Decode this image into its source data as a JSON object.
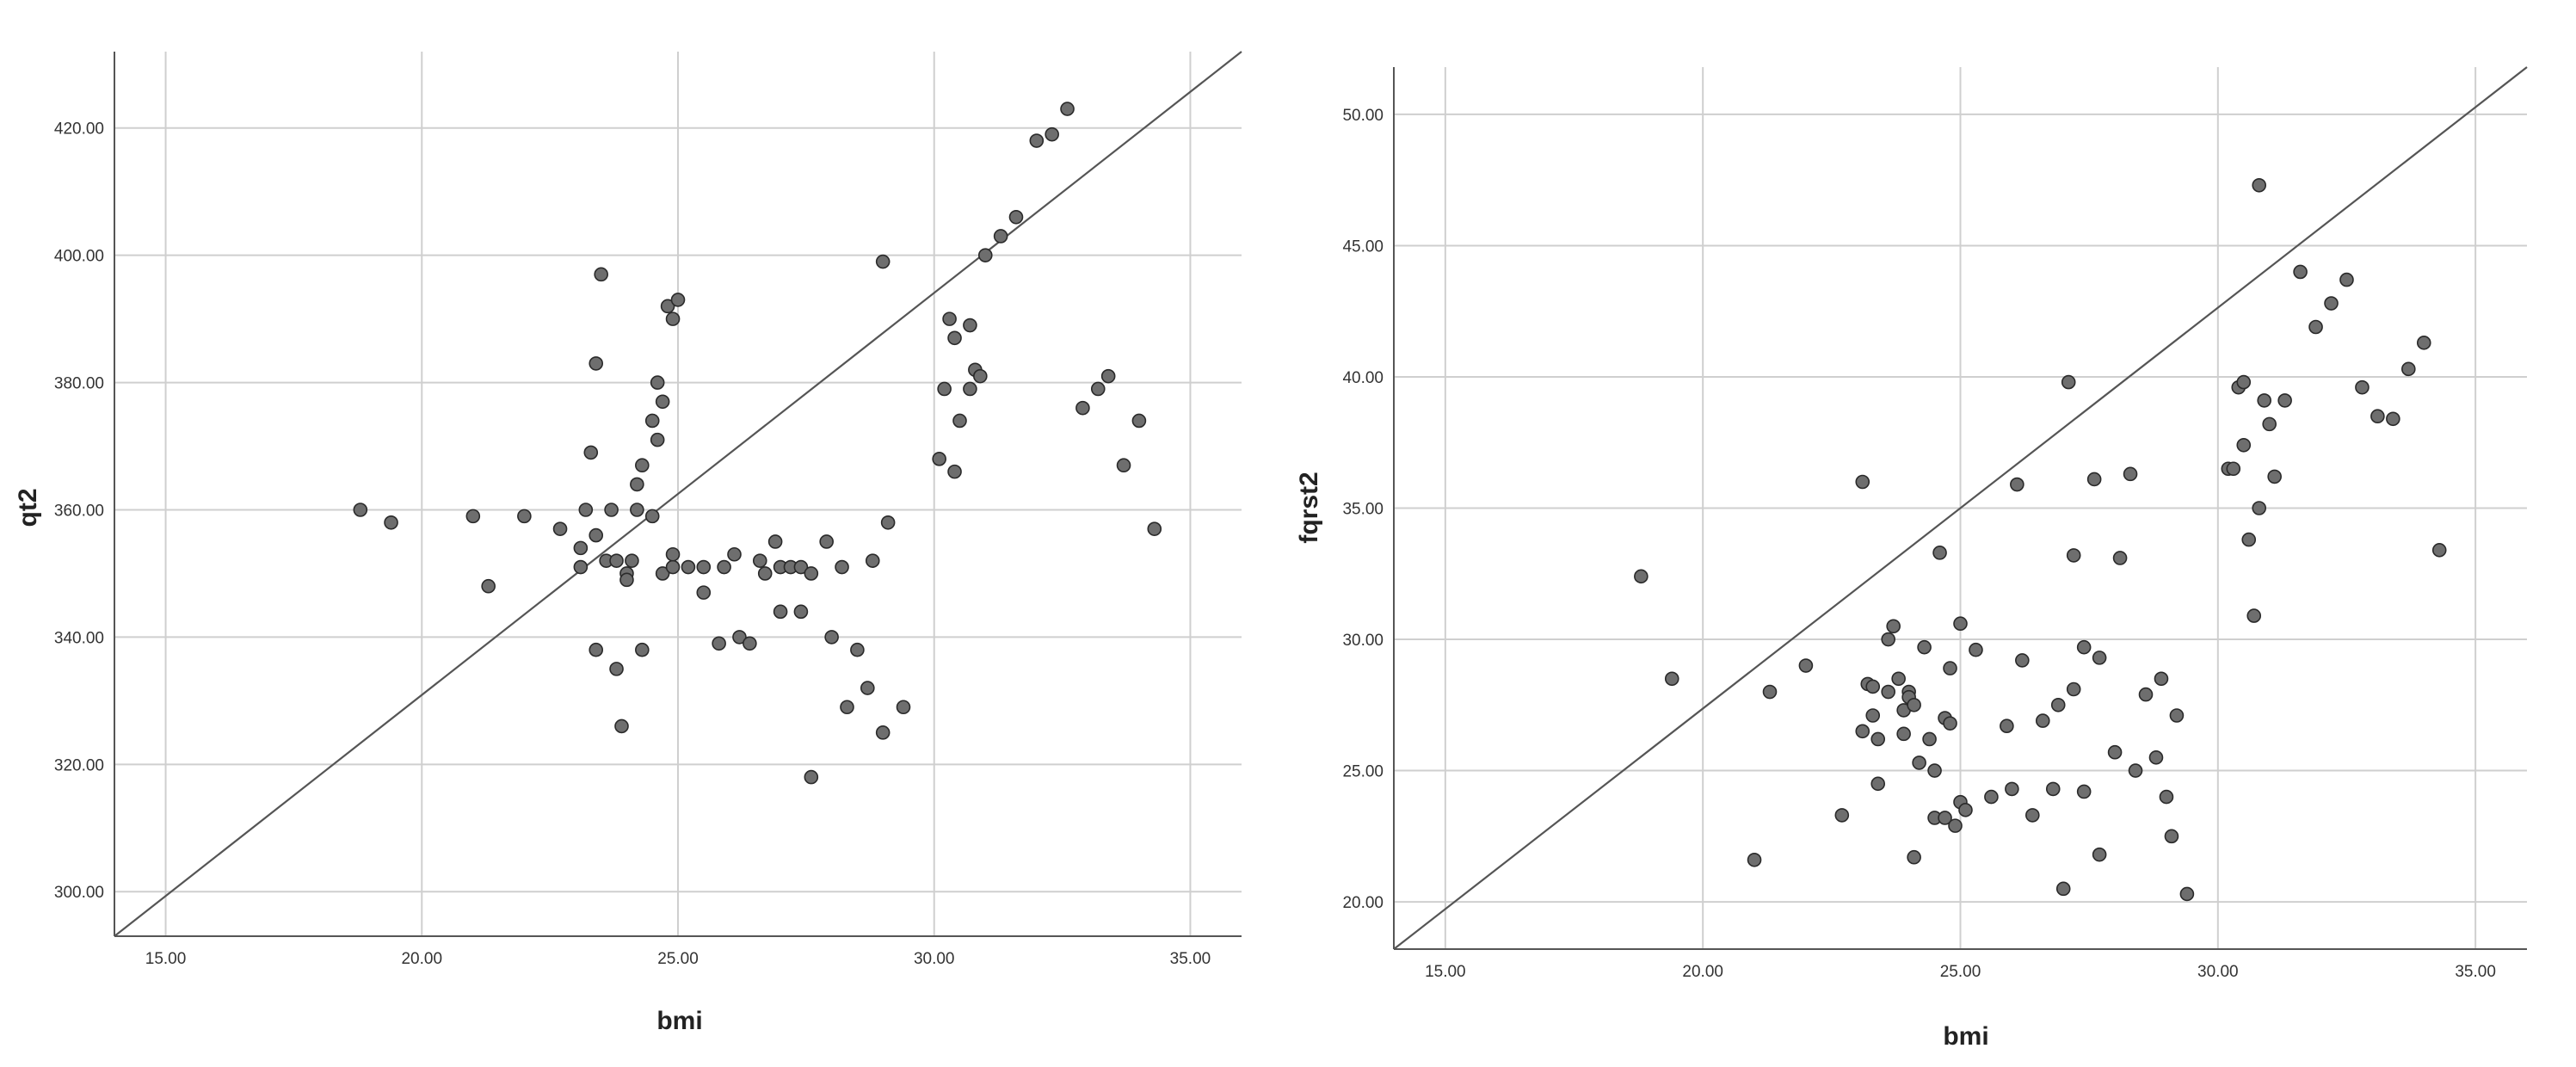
{
  "chart_data": [
    {
      "type": "scatter",
      "xlabel": "bmi",
      "ylabel": "qt2",
      "xlim": [
        14.0,
        36.0
      ],
      "ylim": [
        293.0,
        432.0
      ],
      "xticks": [
        "15.00",
        "20.00",
        "25.00",
        "30.00",
        "35.00"
      ],
      "yticks": [
        "300.00",
        "320.00",
        "340.00",
        "360.00",
        "380.00",
        "400.00",
        "420.00"
      ],
      "grid": true,
      "reference_line": [
        [
          14.0,
          293.0
        ],
        [
          36.0,
          432.0
        ]
      ],
      "points": [
        [
          18.8,
          360
        ],
        [
          19.4,
          358
        ],
        [
          21.0,
          359
        ],
        [
          21.3,
          348
        ],
        [
          22.0,
          359
        ],
        [
          22.7,
          357
        ],
        [
          23.1,
          351
        ],
        [
          23.1,
          354
        ],
        [
          23.2,
          360
        ],
        [
          23.3,
          369
        ],
        [
          23.4,
          383
        ],
        [
          23.5,
          397
        ],
        [
          23.4,
          338
        ],
        [
          23.6,
          352
        ],
        [
          23.4,
          356
        ],
        [
          23.8,
          335
        ],
        [
          23.8,
          352
        ],
        [
          23.7,
          360
        ],
        [
          23.9,
          326
        ],
        [
          24.0,
          350
        ],
        [
          24.0,
          349
        ],
        [
          24.1,
          352
        ],
        [
          24.2,
          360
        ],
        [
          24.2,
          364
        ],
        [
          24.3,
          367
        ],
        [
          24.3,
          338
        ],
        [
          24.5,
          374
        ],
        [
          24.5,
          359
        ],
        [
          24.6,
          380
        ],
        [
          24.6,
          371
        ],
        [
          24.7,
          377
        ],
        [
          24.7,
          350
        ],
        [
          24.8,
          392
        ],
        [
          24.9,
          390
        ],
        [
          25.0,
          393
        ],
        [
          24.9,
          351
        ],
        [
          24.9,
          353
        ],
        [
          25.2,
          351
        ],
        [
          25.5,
          351
        ],
        [
          25.5,
          347
        ],
        [
          25.8,
          339
        ],
        [
          25.9,
          351
        ],
        [
          26.1,
          353
        ],
        [
          26.2,
          340
        ],
        [
          26.4,
          339
        ],
        [
          26.6,
          352
        ],
        [
          26.7,
          350
        ],
        [
          26.9,
          355
        ],
        [
          27.0,
          351
        ],
        [
          27.0,
          344
        ],
        [
          27.2,
          351
        ],
        [
          27.4,
          351
        ],
        [
          27.4,
          344
        ],
        [
          27.6,
          350
        ],
        [
          27.6,
          318
        ],
        [
          27.9,
          355
        ],
        [
          28.0,
          340
        ],
        [
          28.2,
          351
        ],
        [
          28.3,
          329
        ],
        [
          28.5,
          338
        ],
        [
          28.7,
          332
        ],
        [
          28.8,
          352
        ],
        [
          29.0,
          325
        ],
        [
          29.0,
          399
        ],
        [
          29.1,
          358
        ],
        [
          29.4,
          329
        ],
        [
          30.1,
          368
        ],
        [
          30.2,
          379
        ],
        [
          30.3,
          390
        ],
        [
          30.4,
          387
        ],
        [
          30.4,
          366
        ],
        [
          30.5,
          374
        ],
        [
          30.7,
          379
        ],
        [
          30.7,
          389
        ],
        [
          30.8,
          382
        ],
        [
          30.9,
          381
        ],
        [
          31.0,
          400
        ],
        [
          31.3,
          403
        ],
        [
          31.6,
          406
        ],
        [
          32.0,
          418
        ],
        [
          32.3,
          419
        ],
        [
          32.6,
          423
        ],
        [
          32.9,
          376
        ],
        [
          33.2,
          379
        ],
        [
          33.4,
          381
        ],
        [
          33.7,
          367
        ],
        [
          34.0,
          374
        ],
        [
          34.3,
          357
        ]
      ]
    },
    {
      "type": "scatter",
      "xlabel": "bmi",
      "ylabel": "fqrst2",
      "xlim": [
        14.0,
        36.0
      ],
      "ylim": [
        18.2,
        51.8
      ],
      "xticks": [
        "15.00",
        "20.00",
        "25.00",
        "30.00",
        "35.00"
      ],
      "yticks": [
        "20.00",
        "25.00",
        "30.00",
        "35.00",
        "40.00",
        "45.00",
        "50.00"
      ],
      "grid": true,
      "reference_line": [
        [
          14.0,
          18.2
        ],
        [
          36.0,
          51.8
        ]
      ],
      "points": [
        [
          18.8,
          32.4
        ],
        [
          19.4,
          28.5
        ],
        [
          21.0,
          21.6
        ],
        [
          21.3,
          28.0
        ],
        [
          22.0,
          29.0
        ],
        [
          22.7,
          23.3
        ],
        [
          23.1,
          36.0
        ],
        [
          23.1,
          26.5
        ],
        [
          23.2,
          28.3
        ],
        [
          23.3,
          28.2
        ],
        [
          23.3,
          27.1
        ],
        [
          23.4,
          26.2
        ],
        [
          23.4,
          24.5
        ],
        [
          23.6,
          28.0
        ],
        [
          23.6,
          30.0
        ],
        [
          23.7,
          30.5
        ],
        [
          23.8,
          28.5
        ],
        [
          23.9,
          27.3
        ],
        [
          23.9,
          26.4
        ],
        [
          24.0,
          28.0
        ],
        [
          24.0,
          27.8
        ],
        [
          24.1,
          27.5
        ],
        [
          24.1,
          21.7
        ],
        [
          24.2,
          25.3
        ],
        [
          24.3,
          29.7
        ],
        [
          24.4,
          26.2
        ],
        [
          24.5,
          23.2
        ],
        [
          24.5,
          25.0
        ],
        [
          24.6,
          33.3
        ],
        [
          24.7,
          27.0
        ],
        [
          24.7,
          23.2
        ],
        [
          24.8,
          28.9
        ],
        [
          24.8,
          26.8
        ],
        [
          24.9,
          22.9
        ],
        [
          25.0,
          30.6
        ],
        [
          25.0,
          23.8
        ],
        [
          25.1,
          23.5
        ],
        [
          25.3,
          29.6
        ],
        [
          25.6,
          24.0
        ],
        [
          25.9,
          26.7
        ],
        [
          26.0,
          24.3
        ],
        [
          26.1,
          35.9
        ],
        [
          26.2,
          29.2
        ],
        [
          26.4,
          23.3
        ],
        [
          26.6,
          26.9
        ],
        [
          26.8,
          24.3
        ],
        [
          26.9,
          27.5
        ],
        [
          27.0,
          20.5
        ],
        [
          27.1,
          39.8
        ],
        [
          27.2,
          28.1
        ],
        [
          27.2,
          33.2
        ],
        [
          27.4,
          29.7
        ],
        [
          27.4,
          24.2
        ],
        [
          27.6,
          36.1
        ],
        [
          27.7,
          29.3
        ],
        [
          27.7,
          21.8
        ],
        [
          28.0,
          25.7
        ],
        [
          28.1,
          33.1
        ],
        [
          28.3,
          36.3
        ],
        [
          28.4,
          25.0
        ],
        [
          28.6,
          27.9
        ],
        [
          28.8,
          25.5
        ],
        [
          28.9,
          28.5
        ],
        [
          29.0,
          24.0
        ],
        [
          29.1,
          22.5
        ],
        [
          29.2,
          27.1
        ],
        [
          29.4,
          20.3
        ],
        [
          30.2,
          36.5
        ],
        [
          30.3,
          36.5
        ],
        [
          30.4,
          39.6
        ],
        [
          30.5,
          39.8
        ],
        [
          30.5,
          37.4
        ],
        [
          30.6,
          33.8
        ],
        [
          30.7,
          30.9
        ],
        [
          30.8,
          35.0
        ],
        [
          30.8,
          47.3
        ],
        [
          30.9,
          39.1
        ],
        [
          31.0,
          38.2
        ],
        [
          31.1,
          36.2
        ],
        [
          31.3,
          39.1
        ],
        [
          31.6,
          44.0
        ],
        [
          31.9,
          41.9
        ],
        [
          32.2,
          42.8
        ],
        [
          32.5,
          43.7
        ],
        [
          32.8,
          39.6
        ],
        [
          33.1,
          38.5
        ],
        [
          33.4,
          38.4
        ],
        [
          33.7,
          40.3
        ],
        [
          34.0,
          41.3
        ],
        [
          34.3,
          33.4
        ]
      ]
    }
  ]
}
